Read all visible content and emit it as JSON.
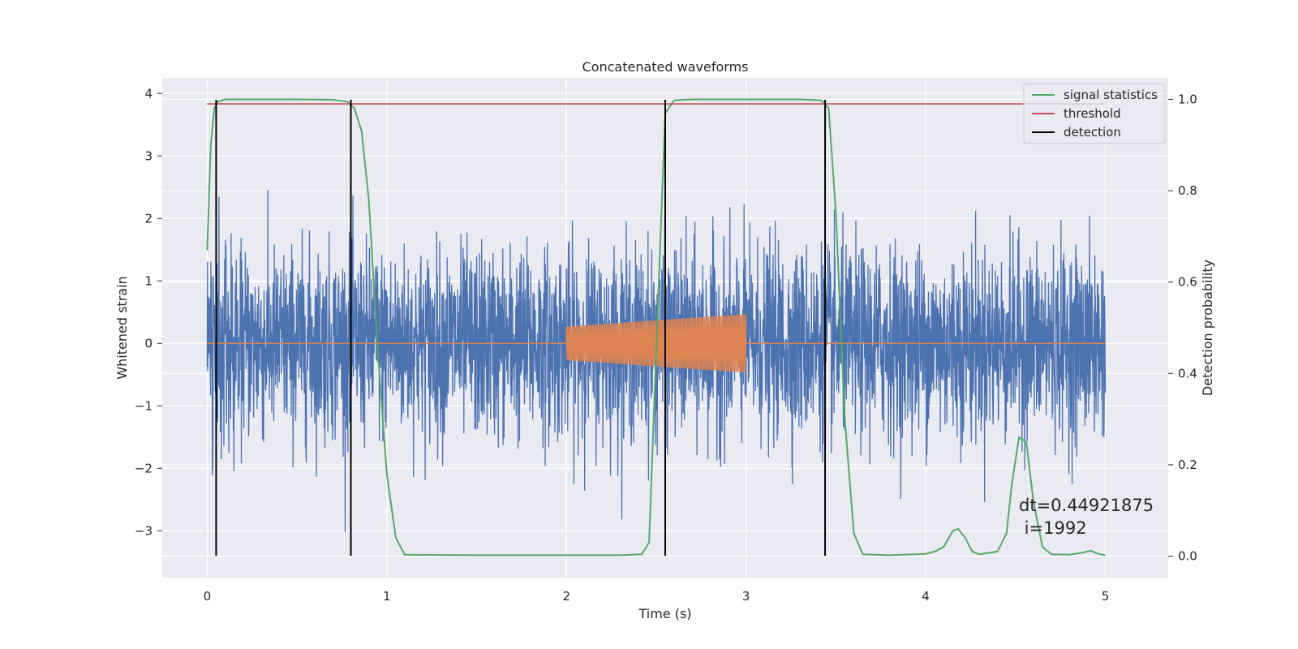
{
  "chart_data": {
    "type": "line",
    "title": "Concatenated waveforms",
    "xlabel": "Time (s)",
    "ylabel": "Whitened strain",
    "y2label": "Detection probability",
    "xlim": [
      -0.25,
      5.35
    ],
    "ylim": [
      -3.75,
      4.25
    ],
    "y2lim": [
      -0.047,
      1.047
    ],
    "x_ticks": [
      "0",
      "1",
      "2",
      "3",
      "4",
      "5"
    ],
    "x_tick_values": [
      0,
      1,
      2,
      3,
      4,
      5
    ],
    "y_ticks": [
      "−3",
      "−2",
      "−1",
      "0",
      "1",
      "2",
      "3",
      "4"
    ],
    "y_tick_values": [
      -3,
      -2,
      -1,
      0,
      1,
      2,
      3,
      4
    ],
    "y2_ticks": [
      "0.0",
      "0.2",
      "0.4",
      "0.6",
      "0.8",
      "1.0"
    ],
    "y2_tick_values": [
      0,
      0.2,
      0.4,
      0.6,
      0.8,
      1.0
    ],
    "grid": true,
    "legend_position": "top-right",
    "colors": {
      "background": "#eaeaf2",
      "strain": "#4c72b0",
      "injection": "#dd8452",
      "signal_statistics": "#55a868",
      "threshold": "#c44e52",
      "detection": "#000000",
      "grid": "#ffffff"
    },
    "series": [
      {
        "name": "signal statistics",
        "axis": "right",
        "x": [
          0,
          0.02,
          0.04,
          0.06,
          0.1,
          0.2,
          0.5,
          0.7,
          0.78,
          0.82,
          0.86,
          0.9,
          0.95,
          1.0,
          1.05,
          1.1,
          1.5,
          2.0,
          2.3,
          2.42,
          2.46,
          2.5,
          2.55,
          2.6,
          2.7,
          3.0,
          3.3,
          3.42,
          3.46,
          3.5,
          3.55,
          3.6,
          3.65,
          3.8,
          4.0,
          4.05,
          4.1,
          4.15,
          4.18,
          4.22,
          4.26,
          4.3,
          4.4,
          4.45,
          4.48,
          4.52,
          4.56,
          4.6,
          4.65,
          4.7,
          4.8,
          4.88,
          4.92,
          4.96,
          5.0
        ],
        "y": [
          0.67,
          0.9,
          0.98,
          0.995,
          1.0,
          1.0,
          1.0,
          0.999,
          0.995,
          0.98,
          0.93,
          0.78,
          0.45,
          0.18,
          0.04,
          0.003,
          0.002,
          0.002,
          0.002,
          0.004,
          0.03,
          0.45,
          0.97,
          0.998,
          1.0,
          1.0,
          1.0,
          0.998,
          0.98,
          0.75,
          0.3,
          0.05,
          0.004,
          0.002,
          0.005,
          0.01,
          0.02,
          0.055,
          0.06,
          0.04,
          0.01,
          0.004,
          0.01,
          0.05,
          0.16,
          0.26,
          0.25,
          0.12,
          0.02,
          0.004,
          0.003,
          0.008,
          0.012,
          0.005,
          0.002
        ]
      },
      {
        "name": "threshold",
        "axis": "right",
        "x": [
          0,
          5
        ],
        "y": [
          0.99,
          0.99
        ]
      },
      {
        "name": "detection",
        "axis": "left",
        "x": [
          0.05,
          0.8,
          2.55,
          3.44
        ],
        "y_range": [
          -3.4,
          3.9
        ]
      }
    ],
    "annotation": "dt=0.44921875\n i=1992"
  }
}
